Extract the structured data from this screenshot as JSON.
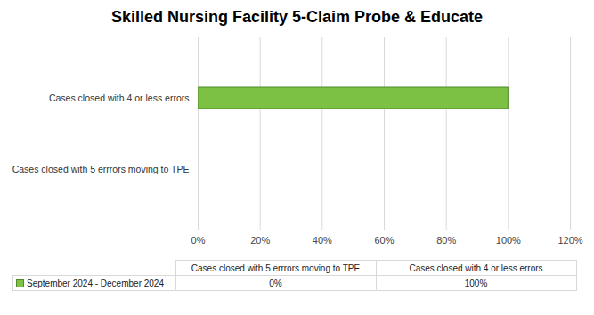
{
  "chart_data": {
    "type": "bar",
    "title": "Skilled Nursing Facility 5-Claim Probe & Educate",
    "orientation": "horizontal",
    "categories": [
      "Cases closed with 5 errrors moving to TPE",
      "Cases closed with 4 or less errors"
    ],
    "series": [
      {
        "name": "September 2024 - December 2024",
        "color": "#7cc144",
        "values": [
          0,
          100
        ],
        "value_labels": [
          "0%",
          "100%"
        ]
      }
    ],
    "xlim": [
      0,
      120
    ],
    "xticks": [
      {
        "value": 0,
        "label": "0%"
      },
      {
        "value": 20,
        "label": "20%"
      },
      {
        "value": 40,
        "label": "40%"
      },
      {
        "value": 60,
        "label": "60%"
      },
      {
        "value": 80,
        "label": "80%"
      },
      {
        "value": 100,
        "label": "100%"
      },
      {
        "value": 120,
        "label": "120%"
      }
    ],
    "grid": true,
    "legend": "bottom"
  }
}
